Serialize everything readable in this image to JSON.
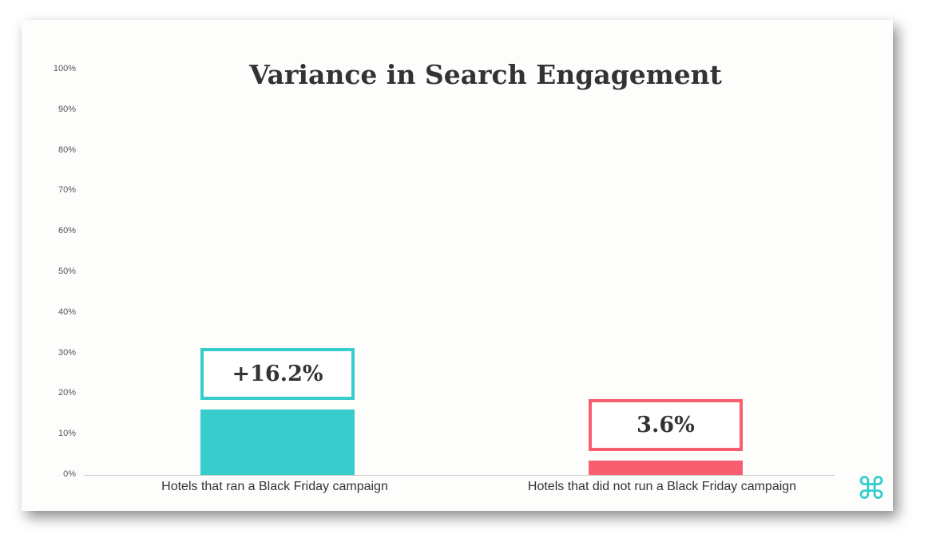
{
  "chart_data": {
    "type": "bar",
    "title": "Variance in Search Engagement",
    "categories": [
      "Hotels that ran a Black Friday campaign",
      "Hotels that did not run a Black Friday campaign"
    ],
    "values": [
      16.2,
      3.6
    ],
    "data_labels": [
      "+16.2%",
      "3.6%"
    ],
    "colors": [
      "#38cccc",
      "#f75e6e"
    ],
    "ylim": [
      0,
      100
    ],
    "yticks": [
      "0%",
      "10%",
      "20%",
      "30%",
      "40%",
      "50%",
      "60%",
      "70%",
      "80%",
      "90%",
      "100%"
    ],
    "xlabel": "",
    "ylabel": "",
    "grid": false
  },
  "logo": "⌘"
}
